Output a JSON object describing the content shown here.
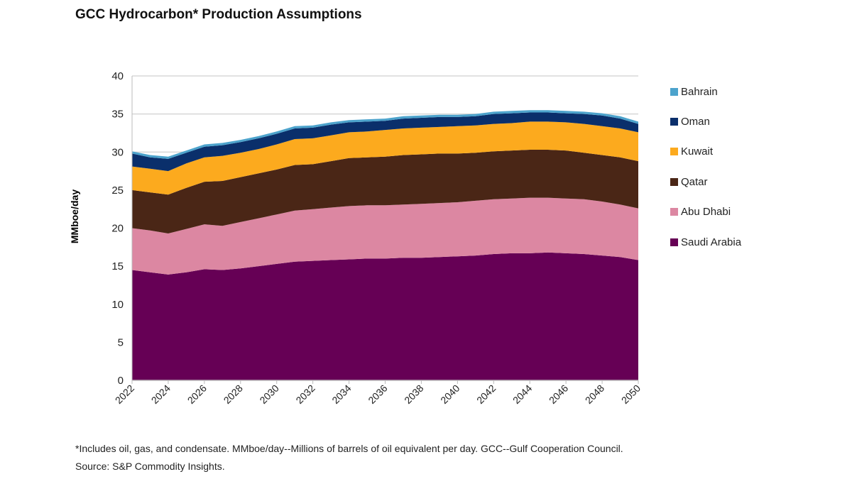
{
  "title": "GCC Hydrocarbon* Production Assumptions",
  "footnote": {
    "line1": "*Includes oil, gas, and condensate. MMboe/day--Millions of barrels of oil equivalent per day. GCC--Gulf Cooperation Council.",
    "line2": "Source: S&P Commodity Insights."
  },
  "chart_data": {
    "type": "area",
    "stacked": true,
    "title": "GCC Hydrocarbon* Production Assumptions",
    "xlabel": "",
    "ylabel": "MMboe/day",
    "ylim": [
      0,
      40
    ],
    "yticks": [
      0,
      5,
      10,
      15,
      20,
      25,
      30,
      35,
      40
    ],
    "xlim": [
      2022,
      2050
    ],
    "xticks": [
      "2022",
      "2024",
      "2026",
      "2028",
      "2030",
      "2032",
      "2034",
      "2036",
      "2038",
      "2040",
      "2042",
      "2044",
      "2046",
      "2048",
      "2050"
    ],
    "grid": "horizontal",
    "legend_position": "right",
    "x": [
      2022,
      2023,
      2024,
      2025,
      2026,
      2027,
      2028,
      2029,
      2030,
      2031,
      2032,
      2033,
      2034,
      2035,
      2036,
      2037,
      2038,
      2039,
      2040,
      2041,
      2042,
      2043,
      2044,
      2045,
      2046,
      2047,
      2048,
      2049,
      2050
    ],
    "series": [
      {
        "name": "Saudi Arabia",
        "color": "#660055",
        "values": [
          14.5,
          14.2,
          13.9,
          14.2,
          14.6,
          14.5,
          14.7,
          15.0,
          15.3,
          15.6,
          15.7,
          15.8,
          15.9,
          16.0,
          16.0,
          16.1,
          16.1,
          16.2,
          16.3,
          16.4,
          16.6,
          16.7,
          16.7,
          16.8,
          16.7,
          16.6,
          16.4,
          16.2,
          15.8
        ]
      },
      {
        "name": "Abu Dhabi",
        "color": "#dc87a2",
        "values": [
          5.5,
          5.5,
          5.4,
          5.7,
          5.9,
          5.8,
          6.1,
          6.3,
          6.5,
          6.7,
          6.8,
          6.9,
          7.0,
          7.0,
          7.0,
          7.0,
          7.1,
          7.1,
          7.1,
          7.2,
          7.2,
          7.2,
          7.3,
          7.2,
          7.2,
          7.2,
          7.1,
          6.9,
          6.8
        ]
      },
      {
        "name": "Qatar",
        "color": "#4a2616",
        "values": [
          5.0,
          5.0,
          5.1,
          5.4,
          5.6,
          5.9,
          5.9,
          5.9,
          5.9,
          6.0,
          5.9,
          6.1,
          6.3,
          6.3,
          6.4,
          6.5,
          6.5,
          6.5,
          6.4,
          6.3,
          6.3,
          6.3,
          6.3,
          6.3,
          6.3,
          6.1,
          6.1,
          6.2,
          6.2
        ]
      },
      {
        "name": "Kuwait",
        "color": "#fcaa1e",
        "values": [
          3.1,
          3.1,
          3.1,
          3.2,
          3.2,
          3.3,
          3.2,
          3.2,
          3.3,
          3.4,
          3.4,
          3.4,
          3.4,
          3.4,
          3.5,
          3.5,
          3.5,
          3.5,
          3.6,
          3.6,
          3.6,
          3.6,
          3.7,
          3.7,
          3.7,
          3.8,
          3.8,
          3.8,
          3.8
        ]
      },
      {
        "name": "Oman",
        "color": "#0a2f6b",
        "values": [
          1.7,
          1.5,
          1.6,
          1.4,
          1.4,
          1.4,
          1.4,
          1.4,
          1.4,
          1.4,
          1.4,
          1.4,
          1.3,
          1.3,
          1.2,
          1.3,
          1.3,
          1.3,
          1.2,
          1.2,
          1.3,
          1.3,
          1.2,
          1.2,
          1.2,
          1.3,
          1.4,
          1.3,
          1.1
        ]
      },
      {
        "name": "Bahrain",
        "color": "#4ca3cc",
        "values": [
          0.3,
          0.3,
          0.3,
          0.3,
          0.3,
          0.3,
          0.3,
          0.3,
          0.3,
          0.3,
          0.3,
          0.3,
          0.3,
          0.3,
          0.3,
          0.3,
          0.3,
          0.3,
          0.3,
          0.3,
          0.3,
          0.3,
          0.3,
          0.3,
          0.3,
          0.3,
          0.3,
          0.3,
          0.3
        ]
      }
    ],
    "legend": [
      "Bahrain",
      "Oman",
      "Kuwait",
      "Qatar",
      "Abu Dhabi",
      "Saudi Arabia"
    ]
  }
}
